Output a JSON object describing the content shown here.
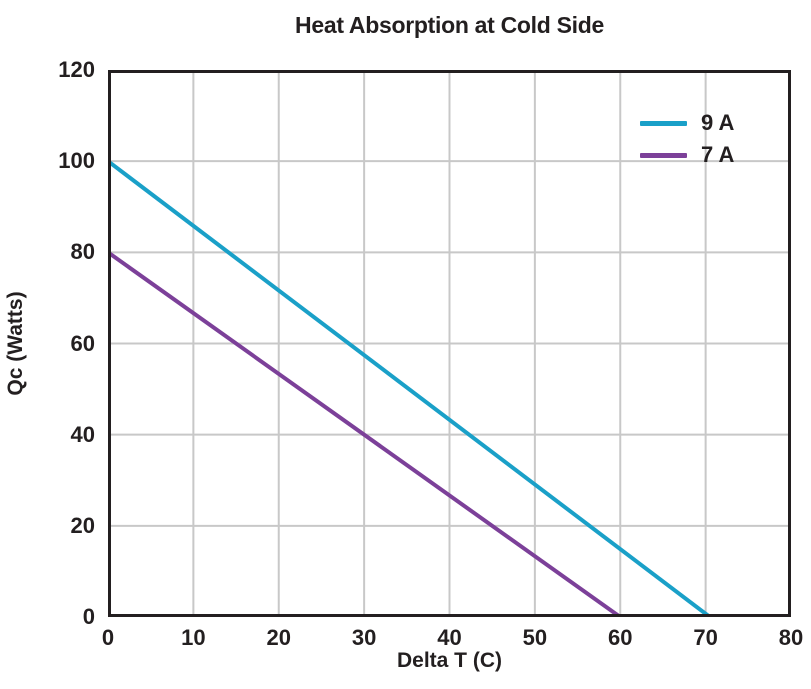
{
  "chart_data": {
    "type": "line",
    "title": "Heat Absorption at Cold Side",
    "xlabel": "Delta T (C)",
    "ylabel": "Qc (Watts)",
    "xlim": [
      0,
      80
    ],
    "ylim": [
      0,
      120
    ],
    "x_ticks": [
      0,
      10,
      20,
      30,
      40,
      50,
      60,
      70,
      80
    ],
    "y_ticks": [
      0,
      20,
      40,
      60,
      80,
      100,
      120
    ],
    "grid": true,
    "legend_position": "inside top-right",
    "series": [
      {
        "name": "9 A",
        "color": "#1aa0c8",
        "x": [
          0,
          70.5
        ],
        "y": [
          100,
          0
        ]
      },
      {
        "name": "7 A",
        "color": "#7c4099",
        "x": [
          0,
          60
        ],
        "y": [
          80,
          0
        ]
      }
    ]
  },
  "colors": {
    "frame": "#231f20",
    "gridline": "#c8c8c8",
    "text": "#231f20",
    "background": "#ffffff"
  }
}
